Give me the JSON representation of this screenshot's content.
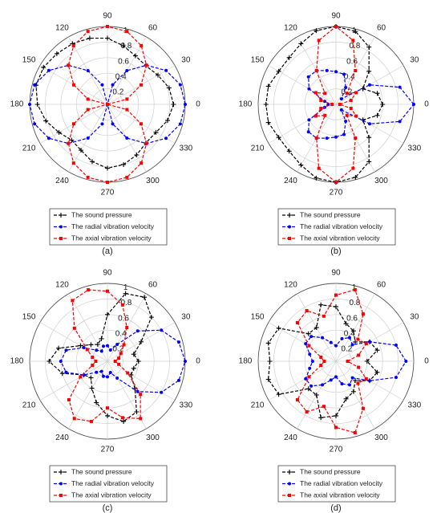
{
  "chart_data": [
    {
      "type": "polar",
      "title": "(a)",
      "theta": [
        0,
        15,
        30,
        45,
        60,
        75,
        90,
        105,
        120,
        135,
        150,
        165,
        180,
        195,
        210,
        225,
        240,
        255,
        270,
        285,
        300,
        315,
        330,
        345
      ],
      "rlim": [
        0,
        1
      ],
      "rticks": [
        0.2,
        0.4,
        0.6,
        0.8,
        1
      ],
      "thetaticks": [
        0,
        30,
        60,
        90,
        120,
        150,
        180,
        210,
        240,
        270,
        300,
        330
      ],
      "legend": "bottom",
      "series": [
        {
          "name": "The sound pressure",
          "color": "#000000",
          "marker": "plus",
          "values": [
            0.85,
            0.82,
            0.75,
            0.7,
            0.72,
            0.78,
            0.85,
            0.88,
            0.9,
            0.92,
            0.95,
            0.95,
            0.9,
            0.82,
            0.72,
            0.65,
            0.68,
            0.76,
            0.82,
            0.8,
            0.75,
            0.7,
            0.72,
            0.8
          ]
        },
        {
          "name": "The radial vibration velocity",
          "color": "#0000ff",
          "marker": "circle",
          "values": [
            1,
            0.97,
            0.87,
            0.71,
            0.5,
            0.26,
            0,
            0.26,
            0.5,
            0.71,
            0.87,
            0.97,
            1,
            0.97,
            0.87,
            0.71,
            0.5,
            0.26,
            0,
            0.26,
            0.5,
            0.71,
            0.87,
            0.97
          ]
        },
        {
          "name": "The axial vibration velocity",
          "color": "#ff0000",
          "marker": "square",
          "values": [
            0,
            0.26,
            0.5,
            0.71,
            0.87,
            0.97,
            1,
            0.97,
            0.87,
            0.71,
            0.5,
            0.26,
            0,
            0.26,
            0.5,
            0.71,
            0.87,
            0.97,
            1,
            0.97,
            0.87,
            0.71,
            0.5,
            0.26
          ]
        }
      ]
    },
    {
      "type": "polar",
      "title": "(b)",
      "theta": [
        0,
        15,
        30,
        45,
        60,
        75,
        90,
        105,
        120,
        135,
        150,
        165,
        180,
        195,
        210,
        225,
        240,
        255,
        270,
        285,
        300,
        315,
        330,
        345
      ],
      "rlim": [
        0,
        1
      ],
      "rticks": [
        0.2,
        0.4,
        0.6,
        0.8,
        1
      ],
      "thetaticks": [
        0,
        30,
        60,
        90,
        120,
        150,
        180,
        210,
        240,
        270,
        300,
        330
      ],
      "legend": "bottom",
      "series": [
        {
          "name": "The sound pressure",
          "color": "#000000",
          "marker": "plus",
          "values": [
            0.6,
            0.55,
            0.4,
            0.6,
            0.85,
            0.97,
            1,
            0.98,
            0.9,
            0.85,
            0.85,
            0.9,
            0.9,
            0.9,
            0.85,
            0.85,
            0.9,
            0.98,
            1,
            0.97,
            0.85,
            0.6,
            0.4,
            0.55
          ]
        },
        {
          "name": "The radial vibration velocity",
          "color": "#0000ff",
          "marker": "circle",
          "values": [
            1,
            0.85,
            0.5,
            0.1,
            0.25,
            0.4,
            0.42,
            0.45,
            0.5,
            0.5,
            0.4,
            0.15,
            0.1,
            0.15,
            0.4,
            0.5,
            0.5,
            0.45,
            0.42,
            0.4,
            0.25,
            0.1,
            0.5,
            0.85
          ]
        },
        {
          "name": "The axial vibration velocity",
          "color": "#ff0000",
          "marker": "square",
          "values": [
            0.05,
            0.2,
            0.3,
            0.2,
            0.5,
            0.85,
            1,
            0.85,
            0.5,
            0.2,
            0.3,
            0.2,
            0.05,
            0.2,
            0.3,
            0.2,
            0.5,
            0.85,
            1,
            0.85,
            0.5,
            0.2,
            0.3,
            0.2
          ]
        }
      ]
    },
    {
      "type": "polar",
      "title": "(c)",
      "theta": [
        0,
        15,
        30,
        45,
        60,
        75,
        90,
        105,
        120,
        135,
        150,
        165,
        180,
        195,
        210,
        225,
        240,
        255,
        270,
        285,
        300,
        315,
        330,
        345
      ],
      "rlim": [
        0,
        1
      ],
      "rticks": [
        0.2,
        0.4,
        0.6,
        0.8,
        1
      ],
      "thetaticks": [
        0,
        30,
        60,
        90,
        120,
        150,
        180,
        210,
        240,
        270,
        300,
        330
      ],
      "legend": "bottom",
      "series": [
        {
          "name": "The sound pressure",
          "color": "#000000",
          "marker": "plus",
          "values": [
            0.4,
            0.35,
            0.5,
            0.8,
            0.95,
            0.9,
            0.6,
            0.3,
            0.25,
            0.3,
            0.4,
            0.65,
            0.75,
            0.6,
            0.35,
            0.3,
            0.4,
            0.55,
            0.7,
            0.8,
            0.75,
            0.5,
            0.35,
            0.35
          ]
        },
        {
          "name": "The radial vibration velocity",
          "color": "#0000ff",
          "marker": "circle",
          "values": [
            1,
            0.95,
            0.8,
            0.55,
            0.25,
            0.15,
            0.2,
            0.2,
            0.15,
            0.2,
            0.35,
            0.55,
            0.6,
            0.55,
            0.35,
            0.2,
            0.15,
            0.2,
            0.2,
            0.15,
            0.25,
            0.55,
            0.8,
            0.95
          ]
        },
        {
          "name": "The axial vibration velocity",
          "color": "#ff0000",
          "marker": "square",
          "values": [
            0.1,
            0.15,
            0.2,
            0.3,
            0.5,
            0.75,
            0.9,
            0.95,
            0.9,
            0.6,
            0.3,
            0.2,
            0.15,
            0.2,
            0.4,
            0.7,
            0.85,
            0.8,
            0.6,
            0.75,
            0.85,
            0.6,
            0.3,
            0.15
          ]
        }
      ]
    },
    {
      "type": "polar",
      "title": "(d)",
      "theta": [
        0,
        15,
        30,
        45,
        60,
        75,
        90,
        105,
        120,
        135,
        150,
        165,
        180,
        195,
        210,
        225,
        240,
        255,
        270,
        285,
        300,
        315,
        330,
        345
      ],
      "rlim": [
        0,
        1
      ],
      "rticks": [
        0.2,
        0.4,
        0.6,
        0.8,
        1
      ],
      "thetaticks": [
        0,
        30,
        60,
        90,
        120,
        150,
        180,
        210,
        240,
        270,
        300,
        330
      ],
      "legend": "bottom",
      "series": [
        {
          "name": "The sound pressure",
          "color": "#000000",
          "marker": "plus",
          "values": [
            0.4,
            0.55,
            0.5,
            0.35,
            0.45,
            0.5,
            0.7,
            0.75,
            0.5,
            0.5,
            0.85,
            0.9,
            0.85,
            0.9,
            0.85,
            0.5,
            0.5,
            0.75,
            0.7,
            0.5,
            0.45,
            0.35,
            0.5,
            0.55
          ]
        },
        {
          "name": "The radial vibration velocity",
          "color": "#0000ff",
          "marker": "circle",
          "values": [
            0.9,
            0.8,
            0.5,
            0.3,
            0.35,
            0.3,
            0.2,
            0.25,
            0.35,
            0.45,
            0.45,
            0.35,
            0.3,
            0.35,
            0.45,
            0.45,
            0.35,
            0.25,
            0.2,
            0.3,
            0.35,
            0.3,
            0.5,
            0.8
          ]
        },
        {
          "name": "The axial vibration velocity",
          "color": "#ff0000",
          "marker": "square",
          "values": [
            0.15,
            0.3,
            0.45,
            0.4,
            0.7,
            0.95,
            0.85,
            0.6,
            0.75,
            0.7,
            0.4,
            0.2,
            0.15,
            0.2,
            0.4,
            0.7,
            0.75,
            0.6,
            0.85,
            0.95,
            0.7,
            0.4,
            0.45,
            0.3
          ]
        }
      ]
    }
  ]
}
